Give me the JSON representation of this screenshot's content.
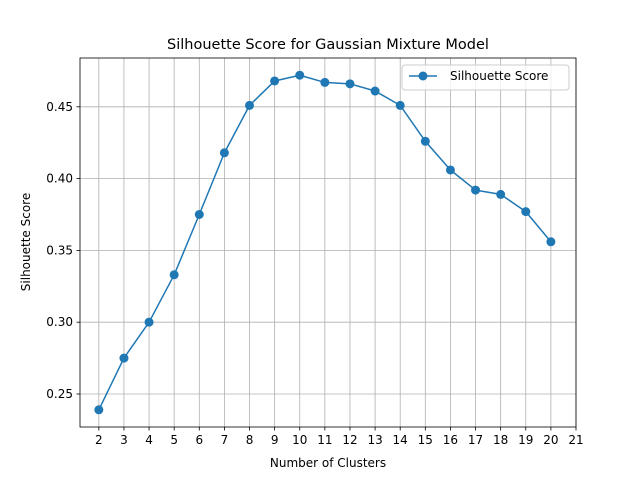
{
  "chart_data": {
    "type": "line",
    "title": "Silhouette Score for Gaussian Mixture Model",
    "xlabel": "Number of Clusters",
    "ylabel": "Silhouette Score",
    "xlim": [
      1.25,
      21.0
    ],
    "ylim": [
      0.227,
      0.484
    ],
    "xticks": [
      2,
      3,
      4,
      5,
      6,
      7,
      8,
      9,
      10,
      11,
      12,
      13,
      14,
      15,
      16,
      17,
      18,
      19,
      20,
      21
    ],
    "yticks": [
      0.25,
      0.3,
      0.35,
      0.4,
      0.45
    ],
    "ytick_labels": [
      "0.25",
      "0.30",
      "0.35",
      "0.40",
      "0.45"
    ],
    "grid": true,
    "legend_position": "top-right",
    "series": [
      {
        "name": "Silhouette Score",
        "color": "#1f77b4",
        "marker": "circle",
        "x": [
          2,
          3,
          4,
          5,
          6,
          7,
          8,
          9,
          10,
          11,
          12,
          13,
          14,
          15,
          16,
          17,
          18,
          19,
          20
        ],
        "values": [
          0.239,
          0.275,
          0.3,
          0.333,
          0.375,
          0.418,
          0.451,
          0.468,
          0.472,
          0.467,
          0.466,
          0.461,
          0.451,
          0.426,
          0.406,
          0.392,
          0.389,
          0.377,
          0.356
        ]
      }
    ]
  }
}
